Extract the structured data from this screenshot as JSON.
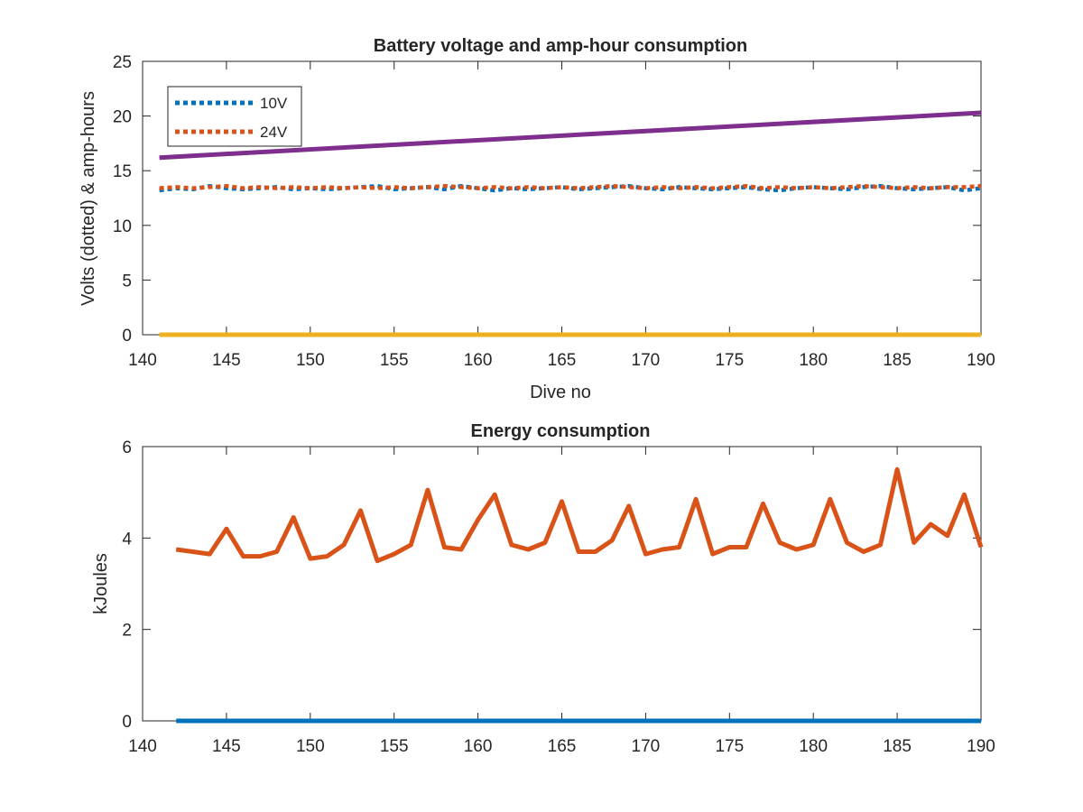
{
  "chart_data": [
    {
      "type": "line",
      "title": "Battery voltage and amp-hour consumption",
      "xlabel": "Dive no",
      "ylabel": "Volts (dotted) & amp-hours",
      "xlim": [
        140,
        190
      ],
      "ylim": [
        0,
        25
      ],
      "xticks": [
        140,
        145,
        150,
        155,
        160,
        165,
        170,
        175,
        180,
        185,
        190
      ],
      "yticks": [
        0,
        5,
        10,
        15,
        20,
        25
      ],
      "legend_position": "top-left",
      "series": [
        {
          "name": "10V",
          "style": "dotted",
          "color": "#0072BD",
          "x": [
            141,
            142,
            143,
            144,
            145,
            146,
            147,
            148,
            149,
            150,
            151,
            152,
            153,
            154,
            155,
            156,
            157,
            158,
            159,
            160,
            161,
            162,
            163,
            164,
            165,
            166,
            167,
            168,
            169,
            170,
            171,
            172,
            173,
            174,
            175,
            176,
            177,
            178,
            179,
            180,
            181,
            182,
            183,
            184,
            185,
            186,
            187,
            188,
            189,
            190
          ],
          "y": [
            13.2,
            13.4,
            13.3,
            13.6,
            13.4,
            13.3,
            13.4,
            13.5,
            13.3,
            13.4,
            13.3,
            13.4,
            13.5,
            13.6,
            13.3,
            13.4,
            13.5,
            13.3,
            13.6,
            13.4,
            13.2,
            13.4,
            13.3,
            13.4,
            13.5,
            13.3,
            13.4,
            13.5,
            13.6,
            13.4,
            13.3,
            13.5,
            13.4,
            13.3,
            13.4,
            13.5,
            13.3,
            13.2,
            13.4,
            13.5,
            13.4,
            13.3,
            13.5,
            13.6,
            13.4,
            13.3,
            13.4,
            13.5,
            13.2,
            13.4
          ]
        },
        {
          "name": "24V",
          "style": "dotted",
          "color": "#D95319",
          "x": [
            141,
            142,
            143,
            144,
            145,
            146,
            147,
            148,
            149,
            150,
            151,
            152,
            153,
            154,
            155,
            156,
            157,
            158,
            159,
            160,
            161,
            162,
            163,
            164,
            165,
            166,
            167,
            168,
            169,
            170,
            171,
            172,
            173,
            174,
            175,
            176,
            177,
            178,
            179,
            180,
            181,
            182,
            183,
            184,
            185,
            186,
            187,
            188,
            189,
            190
          ],
          "y": [
            13.4,
            13.5,
            13.4,
            13.5,
            13.6,
            13.4,
            13.5,
            13.4,
            13.5,
            13.4,
            13.5,
            13.4,
            13.5,
            13.4,
            13.5,
            13.4,
            13.5,
            13.6,
            13.5,
            13.4,
            13.5,
            13.4,
            13.5,
            13.4,
            13.5,
            13.4,
            13.5,
            13.6,
            13.5,
            13.4,
            13.5,
            13.4,
            13.5,
            13.4,
            13.5,
            13.6,
            13.4,
            13.5,
            13.4,
            13.5,
            13.4,
            13.5,
            13.6,
            13.5,
            13.4,
            13.5,
            13.4,
            13.5,
            13.5,
            13.6
          ]
        },
        {
          "style": "solid",
          "color": "#7E2F8E",
          "x": [
            141,
            190
          ],
          "y": [
            16.2,
            20.3
          ]
        },
        {
          "style": "solid",
          "color": "#EDB120",
          "x": [
            141,
            190
          ],
          "y": [
            0,
            0
          ]
        }
      ]
    },
    {
      "type": "line",
      "title": "Energy consumption",
      "xlabel": "",
      "ylabel": "kJoules",
      "xlim": [
        140,
        190
      ],
      "ylim": [
        0,
        6
      ],
      "xticks": [
        140,
        145,
        150,
        155,
        160,
        165,
        170,
        175,
        180,
        185,
        190
      ],
      "yticks": [
        0,
        2,
        4,
        6
      ],
      "series": [
        {
          "style": "solid",
          "color": "#D95319",
          "x": [
            142,
            143,
            144,
            145,
            146,
            147,
            148,
            149,
            150,
            151,
            152,
            153,
            154,
            155,
            156,
            157,
            158,
            159,
            160,
            161,
            162,
            163,
            164,
            165,
            166,
            167,
            168,
            169,
            170,
            171,
            172,
            173,
            174,
            175,
            176,
            177,
            178,
            179,
            180,
            181,
            182,
            183,
            184,
            185,
            186,
            187,
            188,
            189,
            190
          ],
          "y": [
            3.75,
            3.7,
            3.65,
            4.2,
            3.6,
            3.6,
            3.7,
            4.45,
            3.55,
            3.6,
            3.85,
            4.6,
            3.5,
            3.65,
            3.85,
            5.05,
            3.8,
            3.75,
            4.4,
            4.95,
            3.85,
            3.75,
            3.9,
            4.8,
            3.7,
            3.7,
            3.95,
            4.7,
            3.65,
            3.75,
            3.8,
            4.85,
            3.65,
            3.8,
            3.8,
            4.75,
            3.9,
            3.75,
            3.85,
            4.85,
            3.9,
            3.7,
            3.85,
            5.5,
            3.9,
            4.3,
            4.05,
            4.95,
            3.8
          ]
        },
        {
          "style": "solid",
          "color": "#0072BD",
          "x": [
            142,
            190
          ],
          "y": [
            0,
            0
          ]
        }
      ]
    }
  ]
}
